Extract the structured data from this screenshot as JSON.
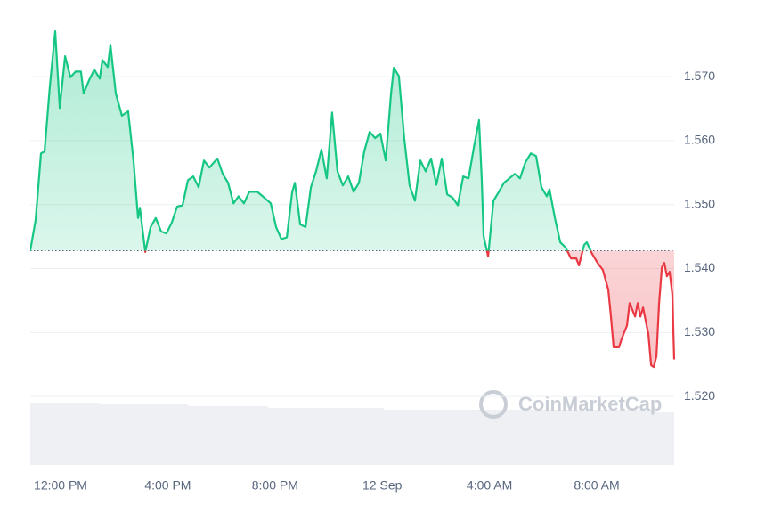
{
  "chart_data": {
    "type": "line",
    "watermark": "CoinMarketCap",
    "xlim": [
      -1.13,
      22.89
    ],
    "ylim": [
      1.5093,
      1.5806
    ],
    "xticks": [
      {
        "value": 0,
        "label": "12:00 PM"
      },
      {
        "value": 4,
        "label": "4:00 PM"
      },
      {
        "value": 8,
        "label": "8:00 PM"
      },
      {
        "value": 12,
        "label": "12 Sep"
      },
      {
        "value": 16,
        "label": "4:00 AM"
      },
      {
        "value": 20,
        "label": "8:00 AM"
      }
    ],
    "yticks": [
      {
        "value": 1.52,
        "label": "1.520"
      },
      {
        "value": 1.53,
        "label": "1.530"
      },
      {
        "value": 1.54,
        "label": "1.540"
      },
      {
        "value": 1.55,
        "label": "1.550"
      },
      {
        "value": 1.56,
        "label": "1.560"
      },
      {
        "value": 1.57,
        "label": "1.570"
      }
    ],
    "grid": true,
    "baseline": 1.5428,
    "up_color": "#16c784",
    "down_color": "#ea3943",
    "x": [
      -1.13,
      -0.93,
      -0.73,
      -0.6,
      -0.4,
      -0.2,
      -0.03,
      0.17,
      0.37,
      0.56,
      0.76,
      0.86,
      1.06,
      1.26,
      1.46,
      1.56,
      1.76,
      1.86,
      2.06,
      2.29,
      2.52,
      2.72,
      2.89,
      2.96,
      3.16,
      3.36,
      3.55,
      3.75,
      3.95,
      4.15,
      4.35,
      4.55,
      4.75,
      4.95,
      5.15,
      5.35,
      5.55,
      5.85,
      6.05,
      6.25,
      6.45,
      6.64,
      6.84,
      7.04,
      7.34,
      7.54,
      7.84,
      8.04,
      8.24,
      8.44,
      8.64,
      8.74,
      8.94,
      9.14,
      9.34,
      9.53,
      9.73,
      9.93,
      10.13,
      10.33,
      10.53,
      10.73,
      10.93,
      11.13,
      11.33,
      11.53,
      11.73,
      11.93,
      12.13,
      12.33,
      12.43,
      12.62,
      12.82,
      13.02,
      13.22,
      13.42,
      13.62,
      13.82,
      14.02,
      14.22,
      14.42,
      14.62,
      14.82,
      15.02,
      15.22,
      15.42,
      15.61,
      15.71,
      15.78,
      15.95,
      16.15,
      16.35,
      16.54,
      16.74,
      16.94,
      17.14,
      17.34,
      17.54,
      17.74,
      17.94,
      18.14,
      18.24,
      18.44,
      18.64,
      18.84,
      19.04,
      19.24,
      19.34,
      19.53,
      19.63,
      19.83,
      20.03,
      20.23,
      20.43,
      20.53,
      20.63,
      20.83,
      20.93,
      21.13,
      21.23,
      21.43,
      21.53,
      21.63,
      21.73,
      21.93,
      22.03,
      22.13,
      22.23,
      22.33,
      22.43,
      22.52,
      22.62,
      22.72,
      22.82,
      22.89
    ],
    "values": [
      1.5428,
      1.5476,
      1.558,
      1.5583,
      1.5685,
      1.5771,
      1.5651,
      1.5732,
      1.5699,
      1.5708,
      1.5708,
      1.5674,
      1.5694,
      1.5711,
      1.5697,
      1.5726,
      1.5715,
      1.575,
      1.5674,
      1.5639,
      1.5646,
      1.5569,
      1.5479,
      1.5495,
      1.5426,
      1.5465,
      1.5479,
      1.5458,
      1.5455,
      1.5472,
      1.5497,
      1.5499,
      1.5538,
      1.5544,
      1.5527,
      1.5569,
      1.5558,
      1.5572,
      1.5548,
      1.5534,
      1.5502,
      1.5513,
      1.5502,
      1.552,
      1.552,
      1.5513,
      1.5502,
      1.5465,
      1.5446,
      1.5449,
      1.552,
      1.5534,
      1.5469,
      1.5465,
      1.5527,
      1.5552,
      1.5586,
      1.5541,
      1.5644,
      1.5552,
      1.553,
      1.5544,
      1.552,
      1.5534,
      1.5583,
      1.5614,
      1.5604,
      1.5611,
      1.5569,
      1.5674,
      1.5714,
      1.5701,
      1.5604,
      1.553,
      1.5506,
      1.5569,
      1.5552,
      1.5572,
      1.5531,
      1.5572,
      1.5516,
      1.5511,
      1.5499,
      1.5544,
      1.5541,
      1.559,
      1.5632,
      1.5541,
      1.5451,
      1.5419,
      1.5506,
      1.552,
      1.5534,
      1.5541,
      1.5548,
      1.5541,
      1.5566,
      1.558,
      1.5576,
      1.5527,
      1.5513,
      1.5524,
      1.5479,
      1.5441,
      1.5433,
      1.5416,
      1.5416,
      1.5405,
      1.5437,
      1.5441,
      1.5423,
      1.5409,
      1.5398,
      1.5367,
      1.5325,
      1.5277,
      1.5277,
      1.529,
      1.5311,
      1.5346,
      1.5325,
      1.5346,
      1.5325,
      1.5339,
      1.5297,
      1.5249,
      1.5246,
      1.5263,
      1.5346,
      1.5402,
      1.5409,
      1.5388,
      1.5395,
      1.536,
      1.5258
    ]
  }
}
